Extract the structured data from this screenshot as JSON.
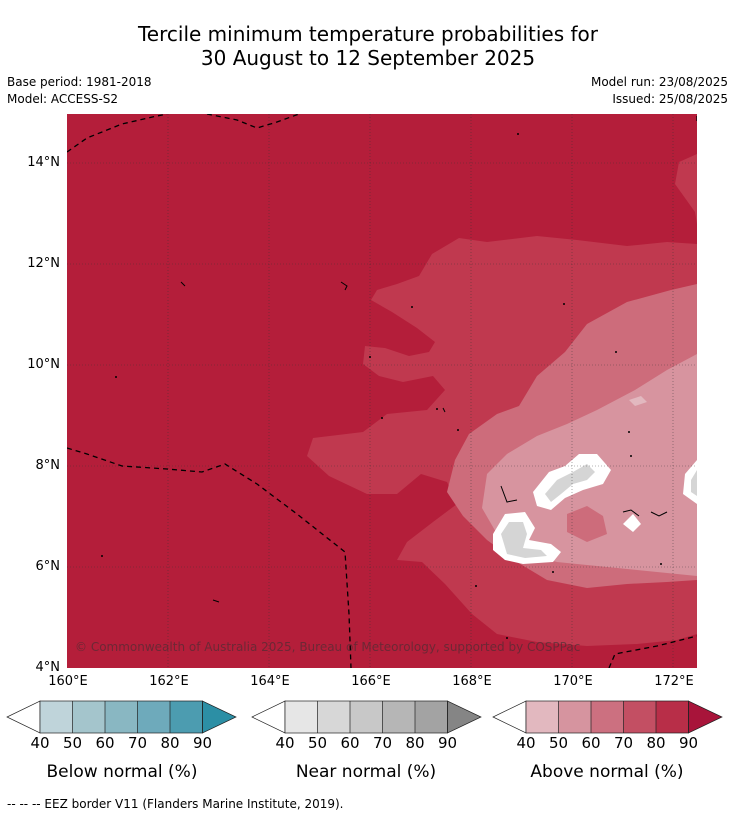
{
  "title_line1": "Tercile minimum temperature probabilities for",
  "title_line2": "30 August to 12 September 2025",
  "base_period": "Base period: 1981-2018",
  "model": "Model: ACCESS-S2",
  "model_run": "Model run: 23/08/2025",
  "issued": "Issued: 25/08/2025",
  "lat_labels": [
    "14°N",
    "12°N",
    "10°N",
    "8°N",
    "6°N",
    "4°N"
  ],
  "lon_labels": [
    "160°E",
    "162°E",
    "164°E",
    "166°E",
    "168°E",
    "170°E",
    "172°E"
  ],
  "copyright": "© Commonwealth of Australia 2025, Bureau of Meteorology, supported by COSPPac",
  "legends": [
    {
      "title": "Below normal (%)",
      "ticks": [
        "40",
        "50",
        "60",
        "70",
        "80",
        "90"
      ],
      "colors": [
        "#ffffff",
        "#bfd4da",
        "#a4c5cc",
        "#89b7c2",
        "#6eaabb",
        "#4c9cb0",
        "#2c8fa5"
      ]
    },
    {
      "title": "Near normal (%)",
      "ticks": [
        "40",
        "50",
        "60",
        "70",
        "80",
        "90"
      ],
      "colors": [
        "#ffffff",
        "#e6e6e6",
        "#d7d7d7",
        "#c8c8c8",
        "#b6b6b6",
        "#a3a3a3",
        "#858585"
      ]
    },
    {
      "title": "Above normal (%)",
      "ticks": [
        "40",
        "50",
        "60",
        "70",
        "80",
        "90"
      ],
      "colors": [
        "#ffffff",
        "#e2b8bf",
        "#d6949f",
        "#cc7080",
        "#c34f63",
        "#b82e48",
        "#a8143a"
      ]
    }
  ],
  "footer": "--  --  -- EEZ border V11 (Flanders Marine Institute, 2019)."
}
